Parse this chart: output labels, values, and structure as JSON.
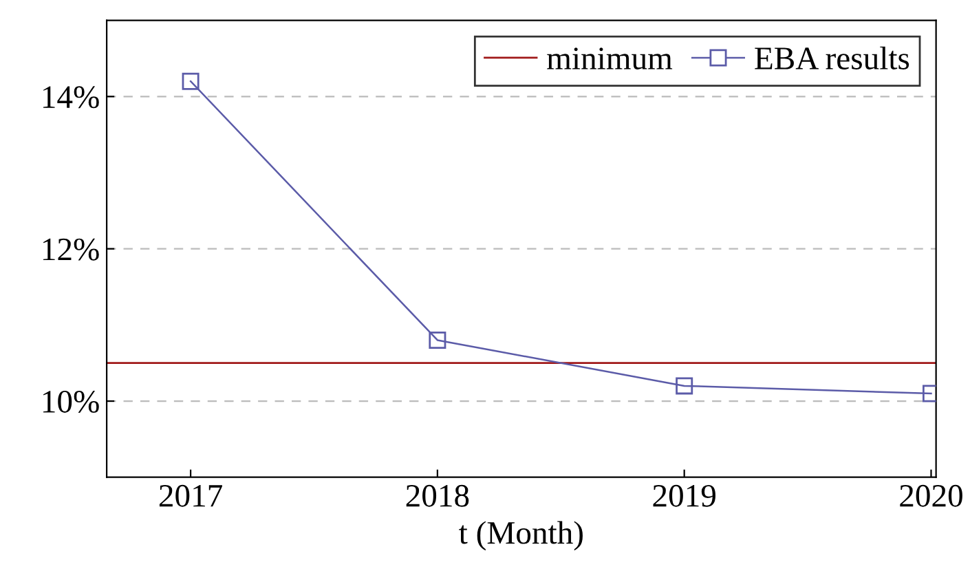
{
  "chart_data": {
    "type": "line",
    "xlabel": "t (Month)",
    "x": [
      2017,
      2018,
      2019,
      2020
    ],
    "series": [
      {
        "name": "EBA results",
        "color": "#5b5ba8",
        "values": [
          14.2,
          10.8,
          10.2,
          10.1
        ]
      }
    ],
    "ref_lines": [
      {
        "axis": "y",
        "value": 10.5,
        "label": "minimum",
        "color": "#a01818"
      }
    ],
    "xlim": [
      2016.66,
      2020.02
    ],
    "ylim": [
      9,
      15
    ],
    "xticks": [
      2017,
      2018,
      2019,
      2020
    ],
    "yticks": [
      {
        "value": 10,
        "label": "10%"
      },
      {
        "value": 12,
        "label": "12%"
      },
      {
        "value": 14,
        "label": "14%"
      }
    ],
    "grid": "y",
    "legend": "top right",
    "marker": "square",
    "line_style": "solid"
  }
}
